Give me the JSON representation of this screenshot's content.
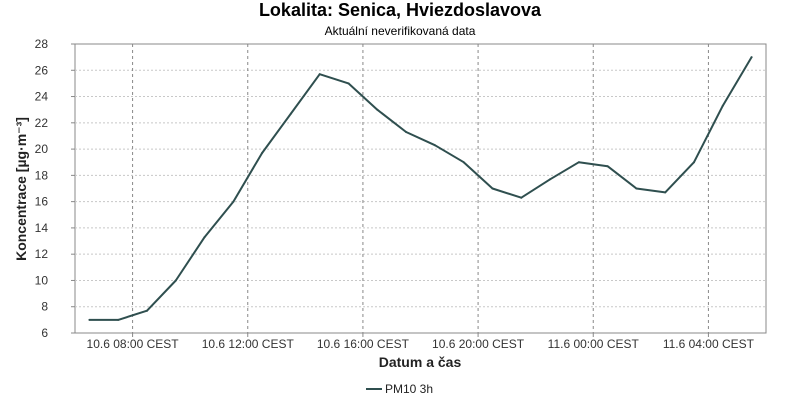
{
  "chart_data": {
    "type": "line",
    "title": "Lokalita: Senica, Hviezdoslavova",
    "subtitle": "Aktuální neverifikovaná data",
    "xlabel": "Datum a čas",
    "ylabel": "Koncentrace [µg·m⁻³]",
    "ylim": [
      6,
      28
    ],
    "yticks": [
      6,
      8,
      10,
      12,
      14,
      16,
      18,
      20,
      22,
      24,
      26,
      28
    ],
    "x_range": [
      "10.6 06:00 CEST",
      "11.6 06:00 CEST"
    ],
    "xticks": [
      {
        "x": "10.6 08:00 CEST",
        "label": "10.6 08:00 CEST"
      },
      {
        "x": "10.6 12:00 CEST",
        "label": "10.6 12:00 CEST"
      },
      {
        "x": "10.6 16:00 CEST",
        "label": "10.6 16:00 CEST"
      },
      {
        "x": "10.6 20:00 CEST",
        "label": "10.6 20:00 CEST"
      },
      {
        "x": "11.6 00:00 CEST",
        "label": "11.6 00:00 CEST"
      },
      {
        "x": "11.6 04:00 CEST",
        "label": "11.6 04:00 CEST"
      }
    ],
    "grid": true,
    "legend_position": "bottom",
    "series": [
      {
        "name": "PM10 3h",
        "color": "#2f4f4f",
        "points": [
          {
            "x": "10.6 06:30 CEST",
            "y": 7.0
          },
          {
            "x": "10.6 07:30 CEST",
            "y": 7.0
          },
          {
            "x": "10.6 08:30 CEST",
            "y": 7.7
          },
          {
            "x": "10.6 09:30 CEST",
            "y": 10.0
          },
          {
            "x": "10.6 10:30 CEST",
            "y": 13.3
          },
          {
            "x": "10.6 11:30 CEST",
            "y": 16.0
          },
          {
            "x": "10.6 12:30 CEST",
            "y": 19.7
          },
          {
            "x": "10.6 13:30 CEST",
            "y": 22.7
          },
          {
            "x": "10.6 14:30 CEST",
            "y": 25.7
          },
          {
            "x": "10.6 15:30 CEST",
            "y": 25.0
          },
          {
            "x": "10.6 16:30 CEST",
            "y": 23.0
          },
          {
            "x": "10.6 17:30 CEST",
            "y": 21.3
          },
          {
            "x": "10.6 18:30 CEST",
            "y": 20.3
          },
          {
            "x": "10.6 19:30 CEST",
            "y": 19.0
          },
          {
            "x": "10.6 20:30 CEST",
            "y": 17.0
          },
          {
            "x": "10.6 21:30 CEST",
            "y": 16.3
          },
          {
            "x": "10.6 22:30 CEST",
            "y": 17.7
          },
          {
            "x": "10.6 23:30 CEST",
            "y": 19.0
          },
          {
            "x": "11.6 00:30 CEST",
            "y": 18.7
          },
          {
            "x": "11.6 01:30 CEST",
            "y": 17.0
          },
          {
            "x": "11.6 02:30 CEST",
            "y": 16.7
          },
          {
            "x": "11.6 03:30 CEST",
            "y": 19.0
          },
          {
            "x": "11.6 04:30 CEST",
            "y": 23.3
          },
          {
            "x": "11.6 05:30 CEST",
            "y": 27.0
          }
        ]
      }
    ]
  }
}
